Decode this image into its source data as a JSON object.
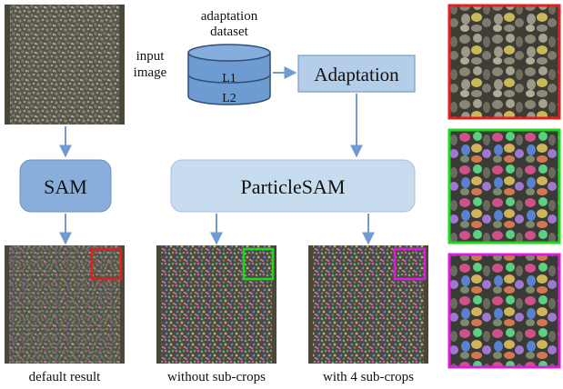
{
  "labels": {
    "input_image_line1": "input",
    "input_image_line2": "image",
    "adaptation_dataset_line1": "adaptation",
    "adaptation_dataset_line2": "dataset",
    "layer1": "L1",
    "layer2": "L2",
    "adaptation": "Adaptation",
    "sam": "SAM",
    "particlesam": "ParticleSAM"
  },
  "captions": {
    "default_result": "default result",
    "without_subcrops": "without sub-crops",
    "with_4_subcrops": "with 4 sub-crops"
  },
  "colors": {
    "sam_box": "#8aaedb",
    "particlesam_box": "#c8dcf0",
    "adaptation_box": "#b4cde9",
    "database": "#6e9bd0",
    "arrow": "#6f9bcf",
    "highlight_default": "#e02020",
    "highlight_no_subcrops": "#1ed81e",
    "highlight_with_subcrops": "#d81ed8",
    "raw_particles": "#6b6658",
    "seg_bg": "#3a3a36"
  }
}
